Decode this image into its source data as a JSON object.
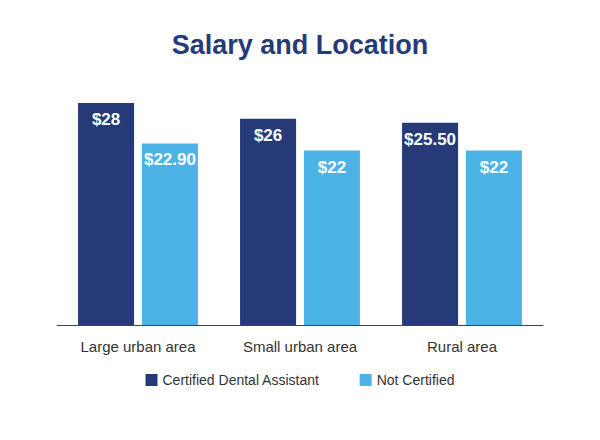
{
  "chart_data": {
    "type": "bar",
    "title": "Salary and Location",
    "categories": [
      "Large urban area",
      "Small urban area",
      "Rural area"
    ],
    "series": [
      {
        "name": "Certified Dental Assistant",
        "color": "#263a78",
        "values": [
          28,
          26,
          25.5
        ],
        "value_labels": [
          "$28",
          "$26",
          "$25.50"
        ]
      },
      {
        "name": "Not Certified",
        "color": "#4cb3e6",
        "values": [
          22.9,
          22,
          22
        ],
        "value_labels": [
          "$22.90",
          "$22",
          "$22"
        ]
      }
    ],
    "ylim": [
      0,
      28
    ],
    "yticks": [
      0,
      28
    ],
    "grid": false,
    "legend": "bottom",
    "data_labels": true,
    "tick_labels": "x"
  }
}
